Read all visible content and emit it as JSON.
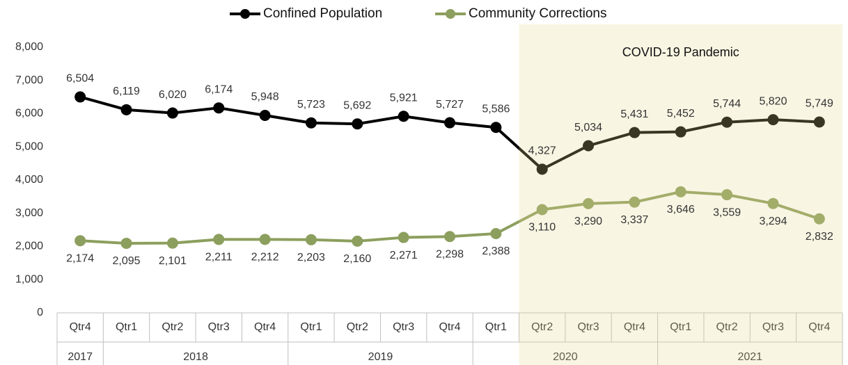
{
  "chart_data": {
    "type": "line",
    "categories": [
      "Qtr4",
      "Qtr1",
      "Qtr2",
      "Qtr3",
      "Qtr4",
      "Qtr1",
      "Qtr2",
      "Qtr3",
      "Qtr4",
      "Qtr1",
      "Qtr2",
      "Qtr3",
      "Qtr4",
      "Qtr1",
      "Qtr2",
      "Qtr3",
      "Qtr4"
    ],
    "year_groups": [
      {
        "label": "2017",
        "span": 1
      },
      {
        "label": "2018",
        "span": 4
      },
      {
        "label": "2019",
        "span": 4
      },
      {
        "label": "2020",
        "span": 4
      },
      {
        "label": "2021",
        "span": 4
      }
    ],
    "series": [
      {
        "name": "Confined Population",
        "color": "#000000",
        "values": [
          6504,
          6119,
          6020,
          6174,
          5948,
          5723,
          5692,
          5921,
          5727,
          5586,
          4327,
          5034,
          5431,
          5452,
          5744,
          5820,
          5749
        ],
        "value_labels": [
          "6,504",
          "6,119",
          "6,020",
          "6,174",
          "5,948",
          "5,723",
          "5,692",
          "5,921",
          "5,727",
          "5,586",
          "4,327",
          "5,034",
          "5,431",
          "5,452",
          "5,744",
          "5,820",
          "5,749"
        ]
      },
      {
        "name": "Community Corrections",
        "color": "#8c9f5e",
        "values": [
          2174,
          2095,
          2101,
          2211,
          2212,
          2203,
          2160,
          2271,
          2298,
          2388,
          3110,
          3290,
          3337,
          3646,
          3559,
          3294,
          2832
        ],
        "value_labels": [
          "2,174",
          "2,095",
          "2,101",
          "2,211",
          "2,212",
          "2,203",
          "2,160",
          "2,271",
          "2,298",
          "2,388",
          "3,110",
          "3,290",
          "3,337",
          "3,646",
          "3,559",
          "3,294",
          "2,832"
        ]
      }
    ],
    "ylim": [
      0,
      8000
    ],
    "yticks": [
      0,
      {
        "value": 1000,
        "label": "1,000"
      },
      {
        "value": 2000,
        "label": "2,000"
      },
      {
        "value": 3000,
        "label": "3,000"
      },
      {
        "value": 4000,
        "label": "4,000"
      },
      {
        "value": 5000,
        "label": "5,000"
      },
      {
        "value": 6000,
        "label": "6,000"
      },
      {
        "value": 7000,
        "label": "7,000"
      },
      {
        "value": 8000,
        "label": "8,000"
      }
    ],
    "highlight": {
      "label": "COVID-19 Pandemic",
      "start_category": 10
    },
    "legend": "top",
    "grid": false
  }
}
